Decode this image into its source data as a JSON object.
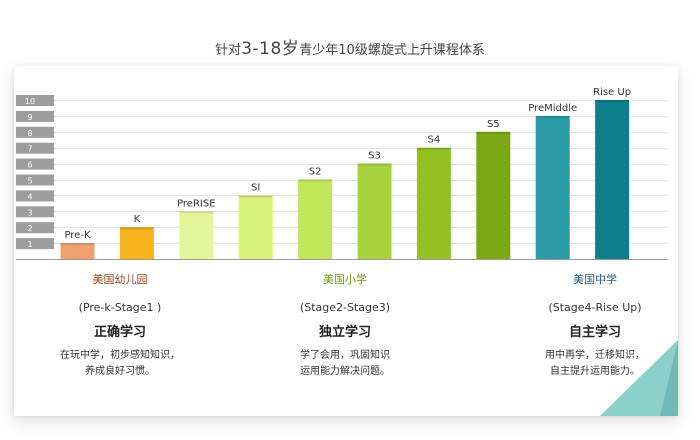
{
  "title": {
    "prefix": "针对",
    "age": "3-18岁",
    "suffix": "青少年10级螺旋式上升课程体系"
  },
  "chart_data": {
    "type": "bar",
    "title": "针对3-18岁青少年10级螺旋式上升课程体系",
    "categories": [
      "Pre-K",
      "K",
      "PreRISE",
      "SI",
      "S2",
      "S3",
      "S4",
      "S5",
      "PreMiddle",
      "Rise Up"
    ],
    "values": [
      1,
      2,
      3,
      4,
      5,
      6,
      7,
      8,
      9,
      10
    ],
    "colors": [
      "#f0a070",
      "#f7b21c",
      "#e6f79a",
      "#d8f27a",
      "#c2e65a",
      "#a7d33e",
      "#93c022",
      "#7aa813",
      "#2b9ba8",
      "#0d7f8c"
    ],
    "y_ticks": [
      1,
      2,
      3,
      4,
      5,
      6,
      7,
      8,
      9,
      10
    ],
    "ylim": [
      0,
      10
    ],
    "grid": true,
    "xlabel": "",
    "ylabel": ""
  },
  "stages": [
    {
      "name": "美国幼儿园",
      "color": "#a0461a",
      "range": "(Pre-k-Stage1 )",
      "mode": "正确学习",
      "desc": [
        "在玩中学，初步感知知识，",
        "养成良好习惯。"
      ]
    },
    {
      "name": "美国小学",
      "color": "#6e9a10",
      "range": "(Stage2-Stage3)",
      "mode": "独立学习",
      "desc": [
        "学了会用，巩固知识",
        "运用能力解决问题。"
      ]
    },
    {
      "name": "美国中学",
      "color": "#1f5e8a",
      "range": "(Stage4-Rise Up)",
      "mode": "自主学习",
      "desc": [
        "用中再学，迁移知识，",
        "自主提升运用能力。"
      ]
    }
  ]
}
